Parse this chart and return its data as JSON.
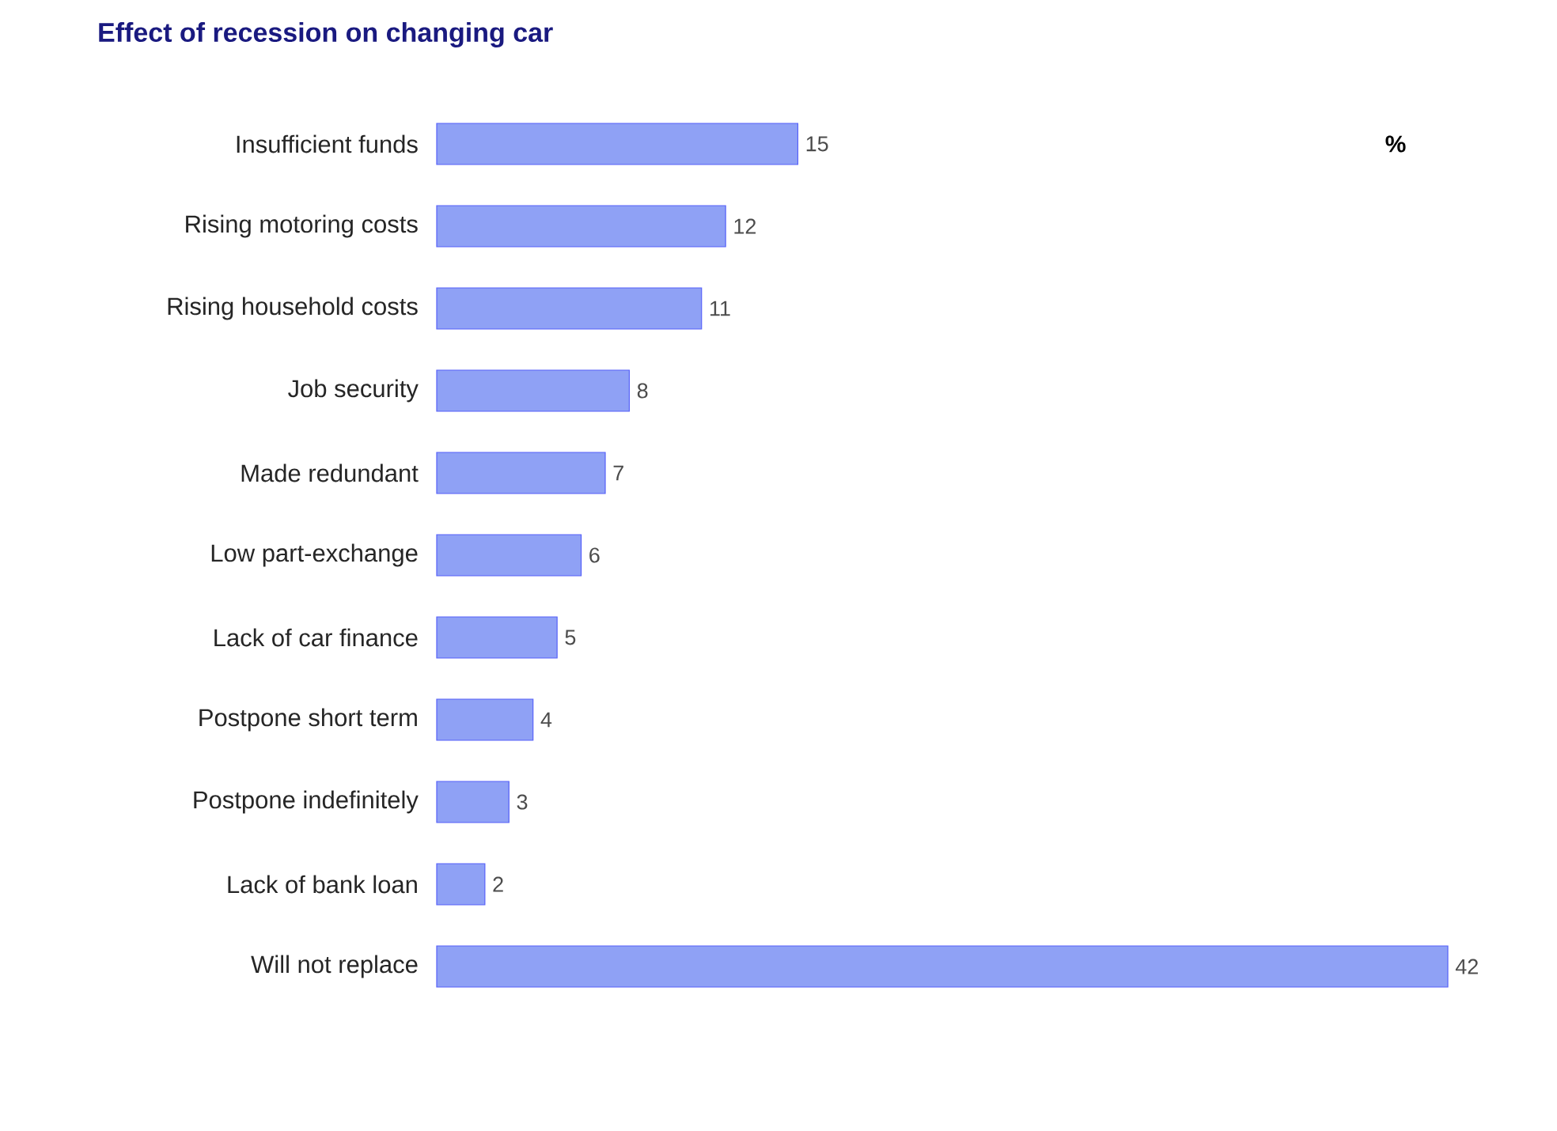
{
  "chart_data": {
    "type": "bar",
    "orientation": "horizontal",
    "title": "Effect of recession on changing car",
    "categories": [
      "Insufficient funds",
      "Rising motoring costs",
      "Rising household costs",
      "Job security",
      "Made redundant",
      "Low part-exchange",
      "Lack of car finance",
      "Postpone short term",
      "Postpone indefinitely",
      "Lack of bank loan",
      "Will not replace"
    ],
    "values": [
      15,
      12,
      11,
      8,
      7,
      6,
      5,
      4,
      3,
      2,
      42
    ],
    "color": "#8fa1f5",
    "data_labels": true,
    "annotations": [
      "%"
    ]
  }
}
